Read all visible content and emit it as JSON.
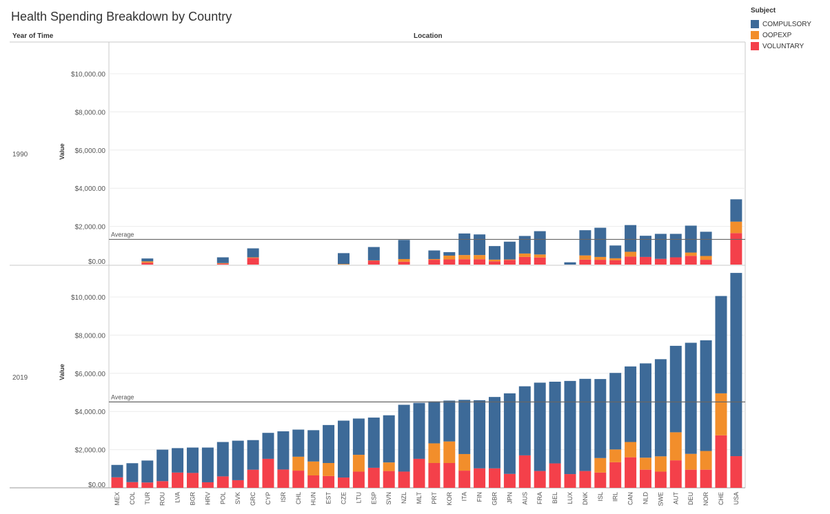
{
  "title": "Health Spending Breakdown by Country",
  "headers": {
    "rows": "Year of Time",
    "columns": "Location"
  },
  "legend": {
    "title": "Subject",
    "items": [
      {
        "label": "COMPULSORY",
        "color": "#3d6a98"
      },
      {
        "label": "OOPEXP",
        "color": "#f28e2b"
      },
      {
        "label": "VOLUNTARY",
        "color": "#f4404a"
      }
    ]
  },
  "chart_data": {
    "type": "bar",
    "stacked": true,
    "ylabel": "Value",
    "yticks": [
      0,
      2000,
      4000,
      6000,
      8000,
      10000
    ],
    "ytick_labels": [
      "$0.00",
      "$2,000.00",
      "$4,000.00",
      "$6,000.00",
      "$8,000.00",
      "$10,000.00"
    ],
    "ylim": [
      0,
      11000
    ],
    "reference_line_label": "Average",
    "categories": [
      "MEX",
      "COL",
      "TUR",
      "ROU",
      "LVA",
      "BGR",
      "HRV",
      "POL",
      "SVK",
      "GRC",
      "CYP",
      "ISR",
      "CHL",
      "HUN",
      "EST",
      "CZE",
      "LTU",
      "ESP",
      "SVN",
      "NZL",
      "MLT",
      "PRT",
      "KOR",
      "ITA",
      "FIN",
      "GBR",
      "JPN",
      "AUS",
      "FRA",
      "BEL",
      "LUX",
      "DNK",
      "ISL",
      "IRL",
      "CAN",
      "NLD",
      "SWE",
      "AUT",
      "DEU",
      "NOR",
      "CHE",
      "USA"
    ],
    "panels": [
      {
        "year": "1990",
        "average": 1320,
        "series": [
          {
            "name": "VOLUNTARY",
            "values": [
              null,
              null,
              100,
              null,
              null,
              null,
              null,
              50,
              null,
              350,
              null,
              null,
              null,
              null,
              null,
              0,
              null,
              200,
              null,
              150,
              null,
              250,
              270,
              280,
              280,
              170,
              240,
              400,
              370,
              null,
              0,
              260,
              250,
              230,
              420,
              400,
              300,
              380,
              460,
              250,
              null,
              1650
            ]
          },
          {
            "name": "OOPEXP",
            "values": [
              null,
              null,
              70,
              null,
              null,
              null,
              null,
              30,
              null,
              30,
              null,
              null,
              null,
              null,
              null,
              30,
              null,
              20,
              null,
              140,
              null,
              40,
              200,
              220,
              220,
              90,
              30,
              180,
              160,
              null,
              0,
              220,
              150,
              100,
              250,
              0,
              0,
              0,
              170,
              200,
              null,
              600
            ]
          },
          {
            "name": "COMPULSORY",
            "values": [
              null,
              null,
              150,
              null,
              null,
              null,
              null,
              300,
              null,
              470,
              null,
              null,
              null,
              null,
              null,
              570,
              null,
              700,
              null,
              1000,
              null,
              450,
              180,
              1130,
              1080,
              710,
              930,
              920,
              1220,
              null,
              120,
              1320,
              1530,
              670,
              1400,
              1110,
              1310,
              1230,
              1410,
              1270,
              null,
              1170
            ]
          }
        ]
      },
      {
        "year": "2019",
        "average": 4500,
        "series": [
          {
            "name": "VOLUNTARY",
            "values": [
              550,
              300,
              280,
              350,
              800,
              780,
              290,
              600,
              400,
              950,
              1520,
              960,
              900,
              650,
              620,
              540,
              850,
              1050,
              880,
              850,
              1520,
              1300,
              1300,
              900,
              1020,
              1020,
              730,
              1700,
              880,
              1280,
              720,
              880,
              800,
              1340,
              1600,
              950,
              850,
              1440,
              950,
              950,
              2750,
              1660
            ]
          },
          {
            "name": "OOPEXP",
            "values": [
              0,
              0,
              0,
              0,
              0,
              0,
              0,
              0,
              0,
              0,
              0,
              0,
              730,
              730,
              680,
              0,
              880,
              0,
              450,
              0,
              0,
              1030,
              1130,
              870,
              0,
              0,
              0,
              0,
              0,
              0,
              0,
              0,
              760,
              670,
              800,
              630,
              800,
              1470,
              830,
              980,
              2200,
              0
            ]
          },
          {
            "name": "COMPULSORY",
            "values": [
              650,
              990,
              1150,
              1650,
              1280,
              1330,
              1820,
              1800,
              2070,
              1550,
              1360,
              2000,
              1420,
              1640,
              1990,
              2980,
              1900,
              2630,
              2470,
              3500,
              2930,
              2200,
              2140,
              2840,
              3570,
              3740,
              4220,
              3620,
              4630,
              4280,
              4880,
              4830,
              4140,
              4010,
              3960,
              4940,
              5090,
              4530,
              5820,
              5800,
              5100,
              9600
            ]
          }
        ]
      }
    ]
  }
}
